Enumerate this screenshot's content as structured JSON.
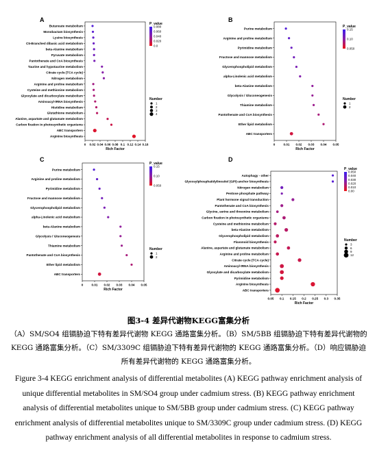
{
  "caption": {
    "title": "图3-4  差异代谢物KEGG富集分析",
    "chinese": "（A）SM/SO4 组镉胁迫下特有差异代谢物 KEGG 通路富集分析。（B）SM/5BB 组镉胁迫下特有差异代谢物的 KEGG 通路富集分析。（C）SM/3309C 组镉胁迫下特有差异代谢物的 KEGG 通路富集分析。（D）响应镉胁迫所有差异代谢物的 KEGG 通路富集分析。",
    "english": "Figure 3-4 KEGG enrichment analysis of differential metabolites (A) KEGG pathway enrichment analysis of unique differential metabolites in SM/SO4 group under cadmium stress. (B) KEGG pathway enrichment analysis of differential metabolites unique to SM/5BB group under cadmium stress. (C) KEGG pathway enrichment analysis of differential metabolites unique to SM/3309C group under cadmium stress. (D) KEGG pathway enrichment analysis of all differential metabolites in response to cadmium stress."
  },
  "colors": {
    "low_p": "#e8141e",
    "mid_p": "#8b1fa6",
    "high_p": "#4a1ee0"
  },
  "chart_data": [
    {
      "type": "scatter",
      "panel": "A",
      "xlabel": "Rich Factor",
      "xlim": [
        0,
        0.16
      ],
      "xticks": [
        "0",
        "0.02",
        "0.04",
        "0.06",
        "0.08",
        "0.1",
        "0.12",
        "0.14",
        "0.16"
      ],
      "color_legend": {
        "title": "P_value",
        "ticks": [
          "0.080",
          "0.060",
          "0.040",
          "0.020",
          "0.0"
        ],
        "range": [
          0,
          0.08
        ]
      },
      "size_legend": {
        "title": "Number",
        "values": [
          "1",
          "2",
          "3",
          "4"
        ]
      },
      "categories": [
        "Butanoate metabolism",
        "Monobactam biosynthesis",
        "Lysine biosynthesis",
        "C5-Branched dibasic acid metabolism",
        "beta-Alanine metabolism",
        "Pyruvate metabolism",
        "Pantothenate and CoA biosynthesis",
        "Taurine and hypotaurine metabolism",
        "Citrate cycle (TCA cycle)",
        "Nitrogen metabolism",
        "Arginine and proline metabolism",
        "Cysteine and methionine metabolism",
        "Glyoxylate and dicarboxylate metabolism",
        "Aminoacyl-tRNA biosynthesis",
        "Histidine metabolism",
        "Glutathione metabolism",
        "Alanine, aspartate and glutamate metabolism",
        "Carbon fixation in photosynthetic organisms",
        "ABC transporters",
        "Arginine biosynthesis"
      ],
      "rich_factor": [
        0.02,
        0.021,
        0.022,
        0.023,
        0.024,
        0.024,
        0.025,
        0.045,
        0.047,
        0.05,
        0.022,
        0.023,
        0.024,
        0.027,
        0.03,
        0.032,
        0.06,
        0.07,
        0.026,
        0.13
      ],
      "p_value": [
        0.075,
        0.07,
        0.065,
        0.06,
        0.058,
        0.055,
        0.052,
        0.045,
        0.042,
        0.04,
        0.03,
        0.028,
        0.026,
        0.024,
        0.022,
        0.02,
        0.016,
        0.012,
        0.005,
        0.003
      ],
      "number": [
        1,
        1,
        1,
        1,
        1,
        1,
        1,
        1,
        1,
        1,
        1,
        1,
        1,
        1,
        1,
        1,
        1,
        1,
        2,
        2
      ]
    },
    {
      "type": "scatter",
      "panel": "B",
      "xlabel": "Rich Factor",
      "xlim": [
        0,
        0.05
      ],
      "xticks": [
        "0",
        "0.01",
        "0.02",
        "0.03",
        "0.04",
        "0.05"
      ],
      "color_legend": {
        "title": "P_value",
        "ticks": [
          "0.15",
          "0.10",
          "0.050"
        ],
        "range": [
          0,
          0.16
        ]
      },
      "size_legend": {
        "title": "Number",
        "values": [
          "1",
          "2"
        ]
      },
      "categories": [
        "Purine metabolism",
        "Arginine and proline metabolism",
        "Pyrimidine metabolism",
        "Fructose and mannose metabolism",
        "Glycerophospholipid metabolism",
        "alpha-Linolenic acid metabolism",
        "beta-Alanine metabolism",
        "Glycolysis / Gluconeogenesis",
        "Thiamine metabolism",
        "Pantothenate and CoA biosynthesis",
        "Ether lipid metabolism",
        "ABC transporters"
      ],
      "rich_factor": [
        0.0095,
        0.012,
        0.014,
        0.016,
        0.018,
        0.021,
        0.031,
        0.031,
        0.032,
        0.036,
        0.04,
        0.014
      ],
      "p_value": [
        0.15,
        0.13,
        0.12,
        0.11,
        0.1,
        0.09,
        0.075,
        0.07,
        0.065,
        0.055,
        0.05,
        0.02
      ],
      "number": [
        1,
        1,
        1,
        1,
        1,
        1,
        1,
        1,
        1,
        1,
        1,
        2
      ]
    },
    {
      "type": "scatter",
      "panel": "C",
      "xlabel": "Rich Factor",
      "xlim": [
        0,
        0.05
      ],
      "xticks": [
        "0",
        "0.01",
        "0.02",
        "0.03",
        "0.04",
        "0.05"
      ],
      "color_legend": {
        "title": "P_value",
        "ticks": [
          "0.15",
          "0.10",
          "0.050"
        ],
        "range": [
          0,
          0.16
        ]
      },
      "size_legend": {
        "title": "Number",
        "values": [
          "1",
          "2"
        ]
      },
      "categories": [
        "Purine metabolism",
        "Arginine and proline metabolism",
        "Pyrimidine metabolism",
        "Fructose and mannose metabolism",
        "Glycerophospholipid metabolism",
        "alpha-Linolenic acid metabolism",
        "beta-Alanine metabolism",
        "Glycolysis / Gluconeogenesis",
        "Thiamine metabolism",
        "Pantothenate and CoA biosynthesis",
        "Ether lipid metabolism",
        "ABC transporters"
      ],
      "rich_factor": [
        0.0095,
        0.012,
        0.014,
        0.016,
        0.018,
        0.021,
        0.031,
        0.031,
        0.032,
        0.036,
        0.04,
        0.014
      ],
      "p_value": [
        0.15,
        0.13,
        0.12,
        0.11,
        0.1,
        0.09,
        0.075,
        0.07,
        0.065,
        0.055,
        0.05,
        0.02
      ],
      "number": [
        1,
        1,
        1,
        1,
        1,
        1,
        1,
        1,
        1,
        1,
        1,
        2
      ]
    },
    {
      "type": "scatter",
      "panel": "D",
      "xlabel": "Rich Factor",
      "xlim": [
        0.05,
        0.35
      ],
      "xticks": [
        "0.05",
        "0.1",
        "0.15",
        "0.2",
        "0.25",
        "0.3",
        "0.35"
      ],
      "color_legend": {
        "title": "P_value",
        "ticks": [
          "0.050",
          "0.040",
          "0.030",
          "0.020",
          "0.010",
          "0.00"
        ],
        "range": [
          0,
          0.05
        ]
      },
      "size_legend": {
        "title": "Number",
        "values": [
          "3",
          "6",
          "9",
          "12"
        ]
      },
      "categories": [
        "Autophagy - other",
        "Glycosylphosphatidylinositol (GPI)-anchor biosynthesis",
        "Nitrogen metabolism",
        "Pentose phosphate pathway",
        "Plant hormone signal transduction",
        "Pantothenate and CoA biosynthesis",
        "Glycine, serine and threonine metabolism",
        "Carbon fixation in photosynthetic organisms",
        "Cysteine and methionine metabolism",
        "beta-Alanine metabolism",
        "Glycerophospholipid metabolism",
        "Flavonoid biosynthesis",
        "Alanine, aspartate and glutamate metabolism",
        "Arginine and proline metabolism",
        "Citrate cycle (TCA cycle)",
        "Aminoacyl-tRNA biosynthesis",
        "Glyoxylate and dicarboxylate metabolism",
        "Pyrimidine metabolism",
        "Arginine biosynthesis",
        "ABC transporters"
      ],
      "rich_factor": [
        0.33,
        0.33,
        0.1,
        0.1,
        0.15,
        0.1,
        0.08,
        0.11,
        0.07,
        0.12,
        0.08,
        0.07,
        0.13,
        0.08,
        0.18,
        0.1,
        0.1,
        0.1,
        0.24,
        0.08
      ],
      "p_value": [
        0.045,
        0.045,
        0.035,
        0.03,
        0.022,
        0.02,
        0.018,
        0.016,
        0.014,
        0.013,
        0.012,
        0.011,
        0.01,
        0.009,
        0.008,
        0.007,
        0.006,
        0.005,
        0.004,
        0.003
      ],
      "number": [
        3,
        3,
        5,
        3,
        5,
        5,
        4,
        6,
        5,
        7,
        6,
        5,
        6,
        6,
        7,
        8,
        8,
        7,
        9,
        10
      ]
    }
  ]
}
